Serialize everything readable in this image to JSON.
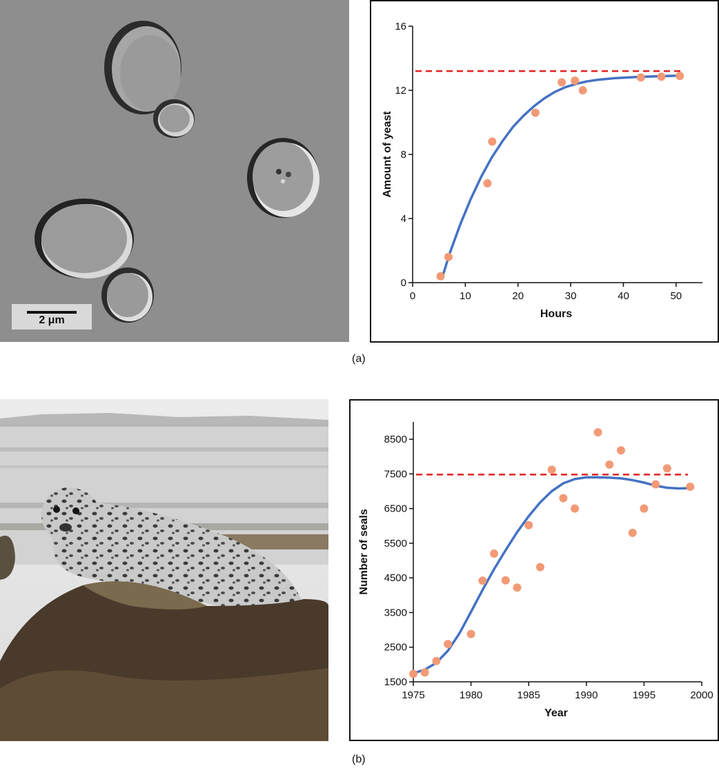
{
  "panel_labels": {
    "a": "(a)",
    "b": "(b)"
  },
  "yeast_photo": {
    "scale_bar_label": "2 μm"
  },
  "colors": {
    "curve": "#4472c4",
    "points": "#f29a76",
    "capacity_line": "#e02020"
  },
  "chart_data": [
    {
      "type": "scatter",
      "xlabel": "Hours",
      "ylabel": "Amount of yeast",
      "xlim": [
        0,
        55
      ],
      "ylim": [
        0,
        16
      ],
      "xticks": [
        0,
        10,
        20,
        30,
        40,
        50
      ],
      "yticks": [
        0,
        4,
        8,
        12,
        16
      ],
      "carrying_capacity": 13.2,
      "points": [
        {
          "x": 5.3,
          "y": 0.4
        },
        {
          "x": 6.8,
          "y": 1.6
        },
        {
          "x": 14.2,
          "y": 6.2
        },
        {
          "x": 15.1,
          "y": 8.8
        },
        {
          "x": 23.3,
          "y": 10.6
        },
        {
          "x": 28.3,
          "y": 12.5
        },
        {
          "x": 30.8,
          "y": 12.6
        },
        {
          "x": 32.3,
          "y": 12.0
        },
        {
          "x": 43.3,
          "y": 12.8
        },
        {
          "x": 47.2,
          "y": 12.85
        },
        {
          "x": 50.7,
          "y": 12.9
        }
      ],
      "fit_curve": [
        [
          5.5,
          0.2
        ],
        [
          7,
          1.8
        ],
        [
          9,
          3.6
        ],
        [
          11,
          5.2
        ],
        [
          13,
          6.6
        ],
        [
          15,
          7.8
        ],
        [
          17,
          8.8
        ],
        [
          19,
          9.7
        ],
        [
          21,
          10.4
        ],
        [
          23,
          11.0
        ],
        [
          25,
          11.5
        ],
        [
          27,
          11.9
        ],
        [
          29,
          12.2
        ],
        [
          31,
          12.4
        ],
        [
          33,
          12.55
        ],
        [
          35,
          12.65
        ],
        [
          38,
          12.75
        ],
        [
          42,
          12.82
        ],
        [
          46,
          12.87
        ],
        [
          51,
          12.92
        ]
      ]
    },
    {
      "type": "scatter",
      "xlabel": "Year",
      "ylabel": "Number of seals",
      "xlim": [
        1975,
        2000
      ],
      "ylim": [
        1500,
        9000
      ],
      "xticks": [
        1975,
        1980,
        1985,
        1990,
        1995,
        2000
      ],
      "yticks": [
        1500,
        2500,
        3500,
        4500,
        5500,
        6500,
        7500,
        8500
      ],
      "carrying_capacity": 7480,
      "points": [
        {
          "x": 1975,
          "y": 1730
        },
        {
          "x": 1976,
          "y": 1770
        },
        {
          "x": 1977,
          "y": 2100
        },
        {
          "x": 1978,
          "y": 2590
        },
        {
          "x": 1980,
          "y": 2880
        },
        {
          "x": 1981,
          "y": 4420
        },
        {
          "x": 1982,
          "y": 5200
        },
        {
          "x": 1983,
          "y": 4430
        },
        {
          "x": 1984,
          "y": 4220
        },
        {
          "x": 1985,
          "y": 6020
        },
        {
          "x": 1986,
          "y": 4810
        },
        {
          "x": 1987,
          "y": 7620
        },
        {
          "x": 1988,
          "y": 6800
        },
        {
          "x": 1989,
          "y": 6500
        },
        {
          "x": 1991,
          "y": 8700
        },
        {
          "x": 1992,
          "y": 7770
        },
        {
          "x": 1993,
          "y": 8180
        },
        {
          "x": 1994,
          "y": 5800
        },
        {
          "x": 1995,
          "y": 6500
        },
        {
          "x": 1996,
          "y": 7200
        },
        {
          "x": 1997,
          "y": 7660
        },
        {
          "x": 1999,
          "y": 7130
        }
      ],
      "fit_curve": [
        [
          1975,
          1750
        ],
        [
          1976,
          1850
        ],
        [
          1977,
          2050
        ],
        [
          1978,
          2400
        ],
        [
          1979,
          2900
        ],
        [
          1980,
          3520
        ],
        [
          1981,
          4150
        ],
        [
          1982,
          4750
        ],
        [
          1983,
          5300
        ],
        [
          1984,
          5820
        ],
        [
          1985,
          6280
        ],
        [
          1986,
          6680
        ],
        [
          1987,
          7000
        ],
        [
          1988,
          7230
        ],
        [
          1989,
          7350
        ],
        [
          1990,
          7400
        ],
        [
          1991,
          7400
        ],
        [
          1992,
          7390
        ],
        [
          1993,
          7370
        ],
        [
          1994,
          7320
        ],
        [
          1995,
          7250
        ],
        [
          1996,
          7160
        ],
        [
          1997,
          7100
        ],
        [
          1998,
          7080
        ],
        [
          1999,
          7090
        ]
      ]
    }
  ]
}
